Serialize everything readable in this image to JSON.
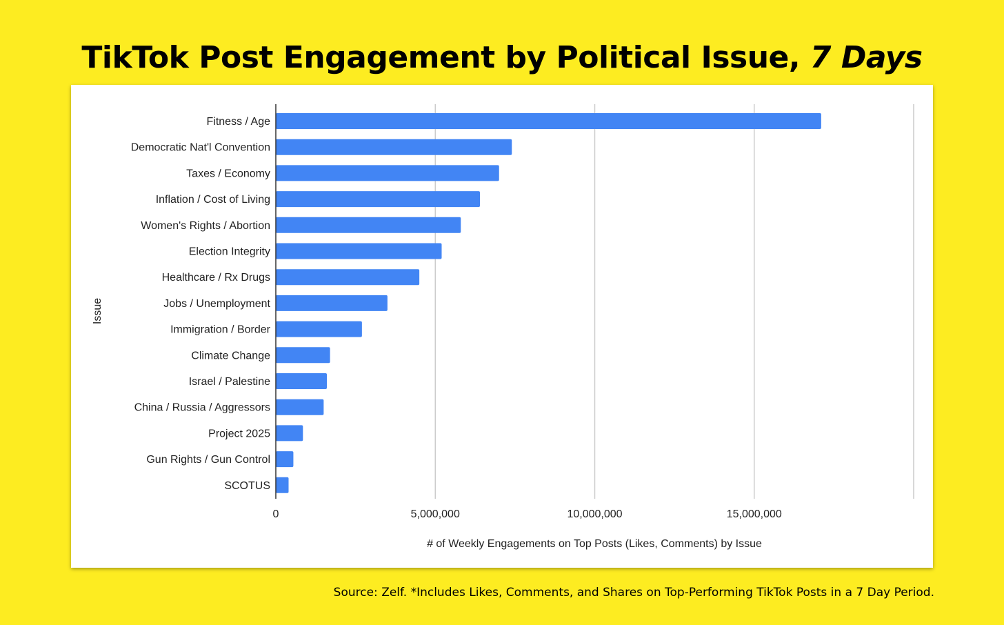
{
  "header": {
    "title_main": "TikTok Post Engagement by Political Issue, ",
    "title_em": "7 Days"
  },
  "footer": {
    "source": "Source: Zelf. *Includes Likes, Comments, and Shares on Top-Performing TikTok Posts in a 7 Day Period."
  },
  "chart_data": {
    "type": "bar",
    "orientation": "horizontal",
    "title": "TikTok Post Engagement by Political Issue, 7 Days",
    "xlabel": "# of Weekly Engagements on Top Posts  (Likes, Comments) by Issue",
    "ylabel": "Issue",
    "categories": [
      "Fitness / Age",
      "Democratic Nat'l Convention",
      "Taxes / Economy",
      "Inflation / Cost of Living",
      "Women's Rights / Abortion",
      "Election Integrity",
      "Healthcare / Rx Drugs",
      "Jobs / Unemployment",
      "Immigration / Border",
      "Climate Change",
      "Israel / Palestine",
      "China / Russia / Aggressors",
      "Project 2025",
      "Gun Rights / Gun Control",
      "SCOTUS"
    ],
    "values": [
      17100000,
      7400000,
      7000000,
      6400000,
      5800000,
      5200000,
      4500000,
      3500000,
      2700000,
      1700000,
      1600000,
      1500000,
      850000,
      550000,
      400000
    ],
    "xlim": [
      0,
      20000000
    ],
    "xticks": [
      0,
      5000000,
      10000000,
      15000000
    ],
    "xtick_labels": [
      "0",
      "5,000,000",
      "10,000,000",
      "15,000,000"
    ],
    "grid": true,
    "bar_color": "#4285f4"
  }
}
